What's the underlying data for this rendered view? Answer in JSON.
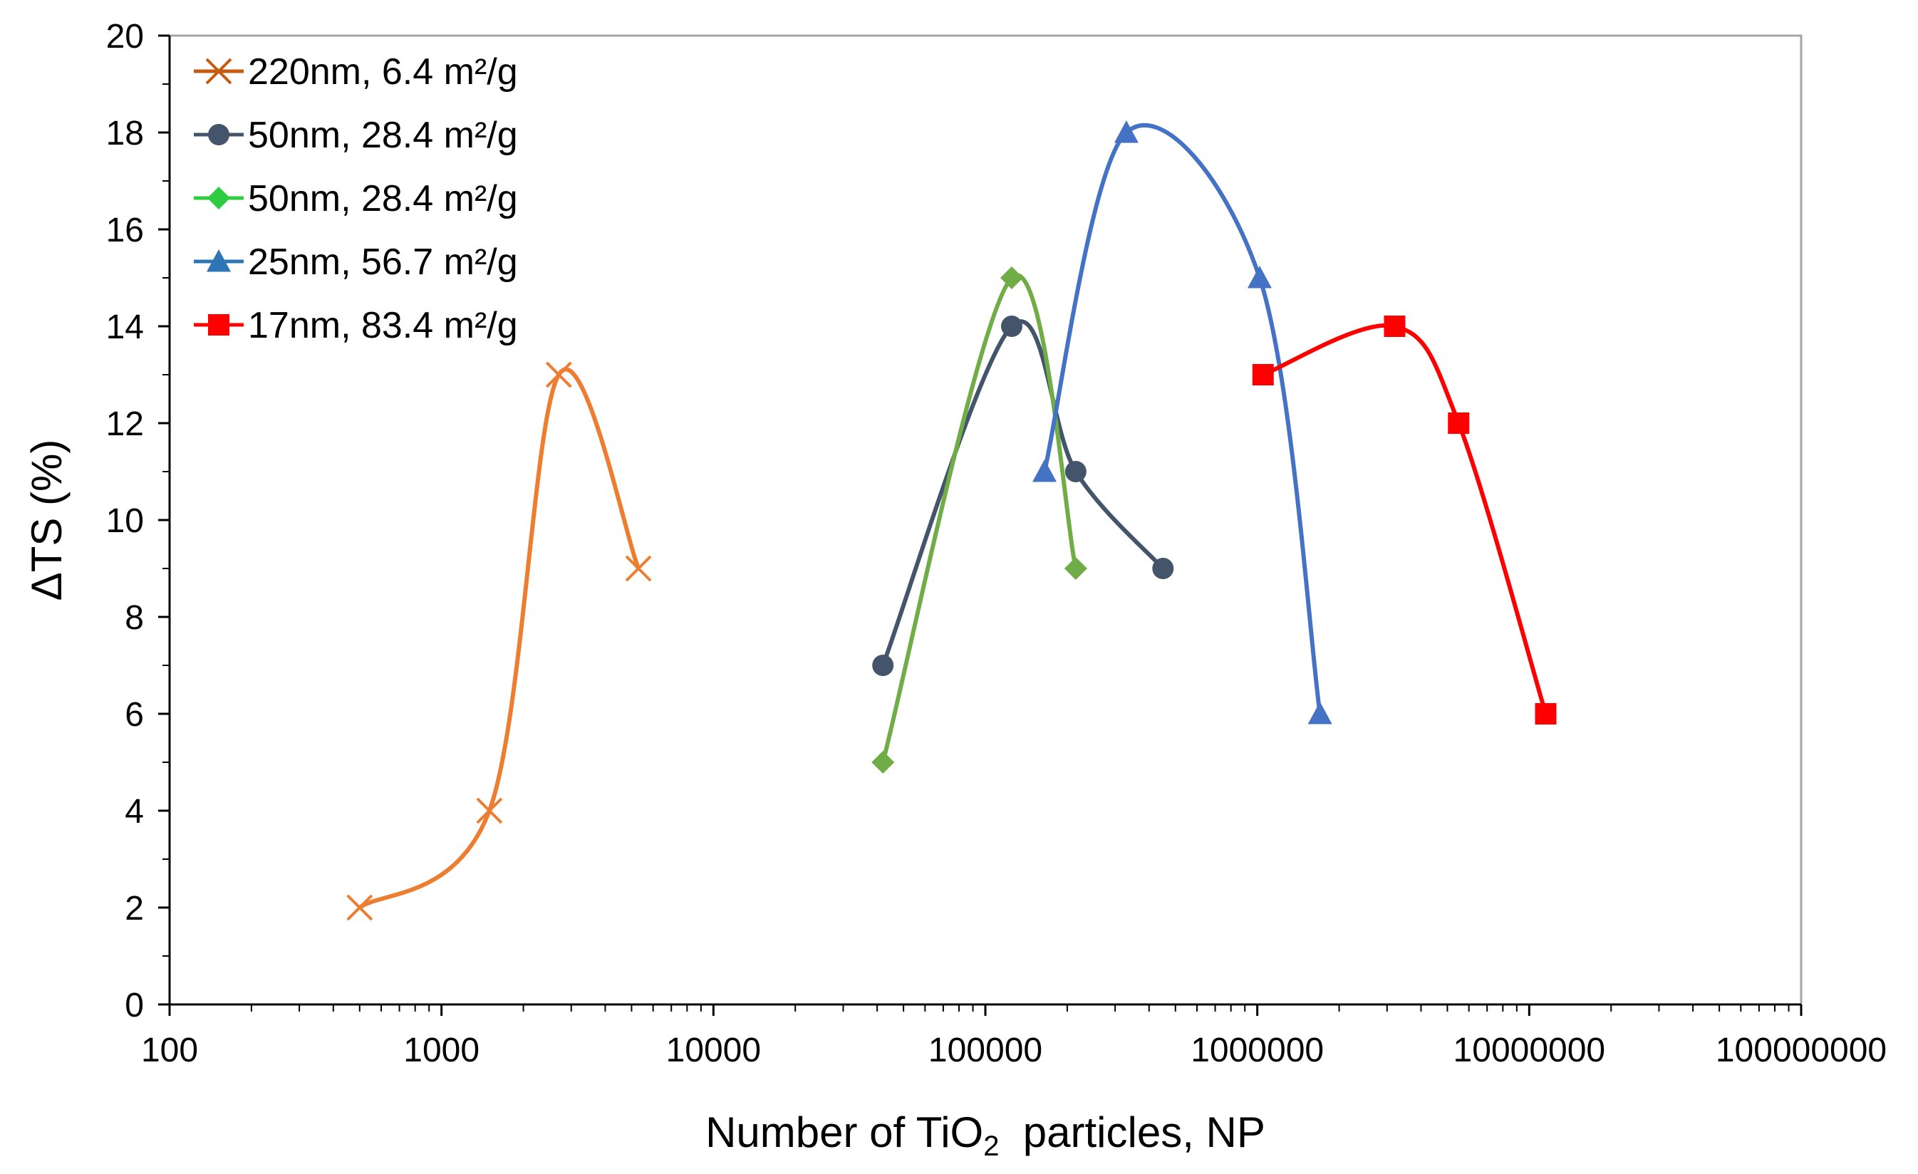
{
  "chart_data": {
    "type": "line",
    "title": "",
    "xscale": "log",
    "xlabel_parts": {
      "prefix": "Number of TiO",
      "subscript": "2",
      "suffix": "  particles, NP"
    },
    "ylabel": "ΔTS (%)",
    "xlim": [
      100,
      100000000
    ],
    "ylim": [
      0,
      20
    ],
    "xticks": [
      100,
      1000,
      10000,
      100000,
      1000000,
      10000000,
      100000000
    ],
    "xtick_labels": [
      "100",
      "1000",
      "10000",
      "100000",
      "1000000",
      "10000000",
      "100000000"
    ],
    "yticks": [
      0,
      2,
      4,
      6,
      8,
      10,
      12,
      14,
      16,
      18,
      20
    ],
    "ytick_labels": [
      "0",
      "2",
      "4",
      "6",
      "8",
      "10",
      "12",
      "14",
      "16",
      "18",
      "20"
    ],
    "grid": false,
    "legend_position": "top-left",
    "series": [
      {
        "name": "220nm, 6.4 m²/g",
        "marker": "x",
        "legend_color": "#c55a11",
        "line_color": "#ed7d31",
        "x": [
          500,
          1500,
          2700,
          5300
        ],
        "y": [
          2,
          4,
          13,
          9
        ]
      },
      {
        "name": "50nm, 28.4 m²/g",
        "marker": "circle",
        "legend_color": "#44546a",
        "line_color": "#44546a",
        "x": [
          42000,
          125000,
          215000,
          450000
        ],
        "y": [
          7,
          14,
          11,
          9
        ]
      },
      {
        "name": "50nm, 28.4 m²/g",
        "marker": "diamond",
        "legend_color": "#2ecc40",
        "line_color": "#70ad47",
        "x": [
          42000,
          125000,
          215000
        ],
        "y": [
          5,
          15,
          9
        ]
      },
      {
        "name": "25nm, 56.7 m²/g",
        "marker": "triangle",
        "legend_color": "#2e75b6",
        "line_color": "#4472c4",
        "x": [
          165000,
          330000,
          1020000,
          1700000
        ],
        "y": [
          11,
          18,
          15,
          6
        ]
      },
      {
        "name": "17nm, 83.4 m²/g",
        "marker": "square",
        "legend_color": "#ff0000",
        "line_color": "#ff0000",
        "x": [
          1050000,
          3200000,
          5500000,
          11500000
        ],
        "y": [
          13,
          14,
          12,
          6
        ]
      }
    ]
  }
}
